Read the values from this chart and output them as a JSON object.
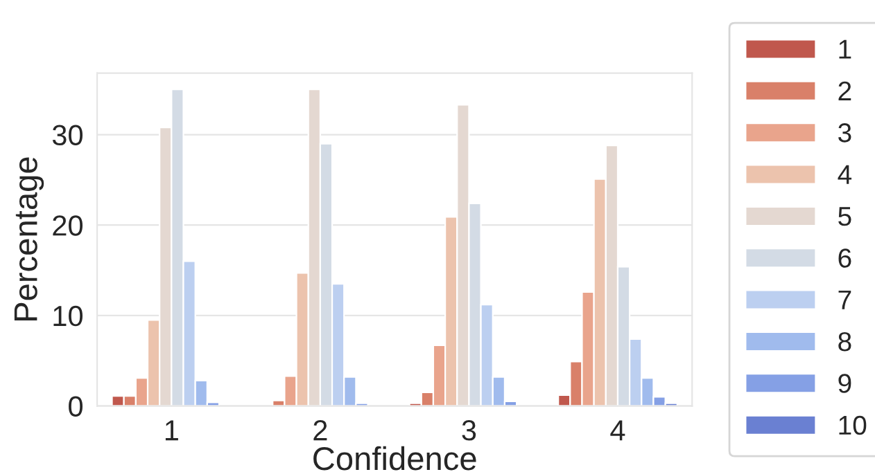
{
  "chart_data": {
    "type": "bar",
    "xlabel": "Confidence",
    "ylabel": "Percentage",
    "categories": [
      "1",
      "2",
      "3",
      "4"
    ],
    "series": [
      {
        "name": "1",
        "color": "#c0584d",
        "values": [
          1.1,
          null,
          0.3,
          1.2
        ]
      },
      {
        "name": "2",
        "color": "#d98069",
        "values": [
          1.1,
          0.6,
          1.5,
          4.9
        ]
      },
      {
        "name": "3",
        "color": "#e9a48c",
        "values": [
          3.1,
          3.3,
          6.7,
          12.6
        ]
      },
      {
        "name": "4",
        "color": "#ecc3ad",
        "values": [
          9.5,
          14.7,
          20.9,
          25.1
        ]
      },
      {
        "name": "5",
        "color": "#e4d8d1",
        "values": [
          30.8,
          35.0,
          33.3,
          28.8
        ]
      },
      {
        "name": "6",
        "color": "#d3dbe5",
        "values": [
          35.0,
          29.0,
          22.4,
          15.4
        ]
      },
      {
        "name": "7",
        "color": "#bccff0",
        "values": [
          16.0,
          13.5,
          11.2,
          7.4
        ]
      },
      {
        "name": "8",
        "color": "#a0bbed",
        "values": [
          2.8,
          3.2,
          3.2,
          3.1
        ]
      },
      {
        "name": "9",
        "color": "#85a0e5",
        "values": [
          0.4,
          0.3,
          0.5,
          1.0
        ]
      },
      {
        "name": "10",
        "color": "#6a80d2",
        "values": [
          null,
          null,
          null,
          0.3
        ]
      }
    ],
    "ylim": [
      0,
      36.8
    ],
    "yticks": [
      0,
      10,
      20,
      30
    ],
    "grid": "y",
    "legend": "right"
  }
}
